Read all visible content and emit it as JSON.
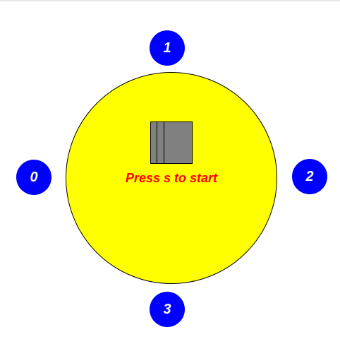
{
  "colors": {
    "table": "#ffff00",
    "seat": "#0000ff",
    "card": "#808080",
    "message": "#ff0000"
  },
  "seats": [
    {
      "label": "0",
      "icon": "player-seat-icon"
    },
    {
      "label": "1",
      "icon": "player-seat-icon"
    },
    {
      "label": "2",
      "icon": "player-seat-icon"
    },
    {
      "label": "3",
      "icon": "player-seat-icon"
    }
  ],
  "deck": {
    "icon": "card-deck-icon"
  },
  "message": "Press s to start"
}
